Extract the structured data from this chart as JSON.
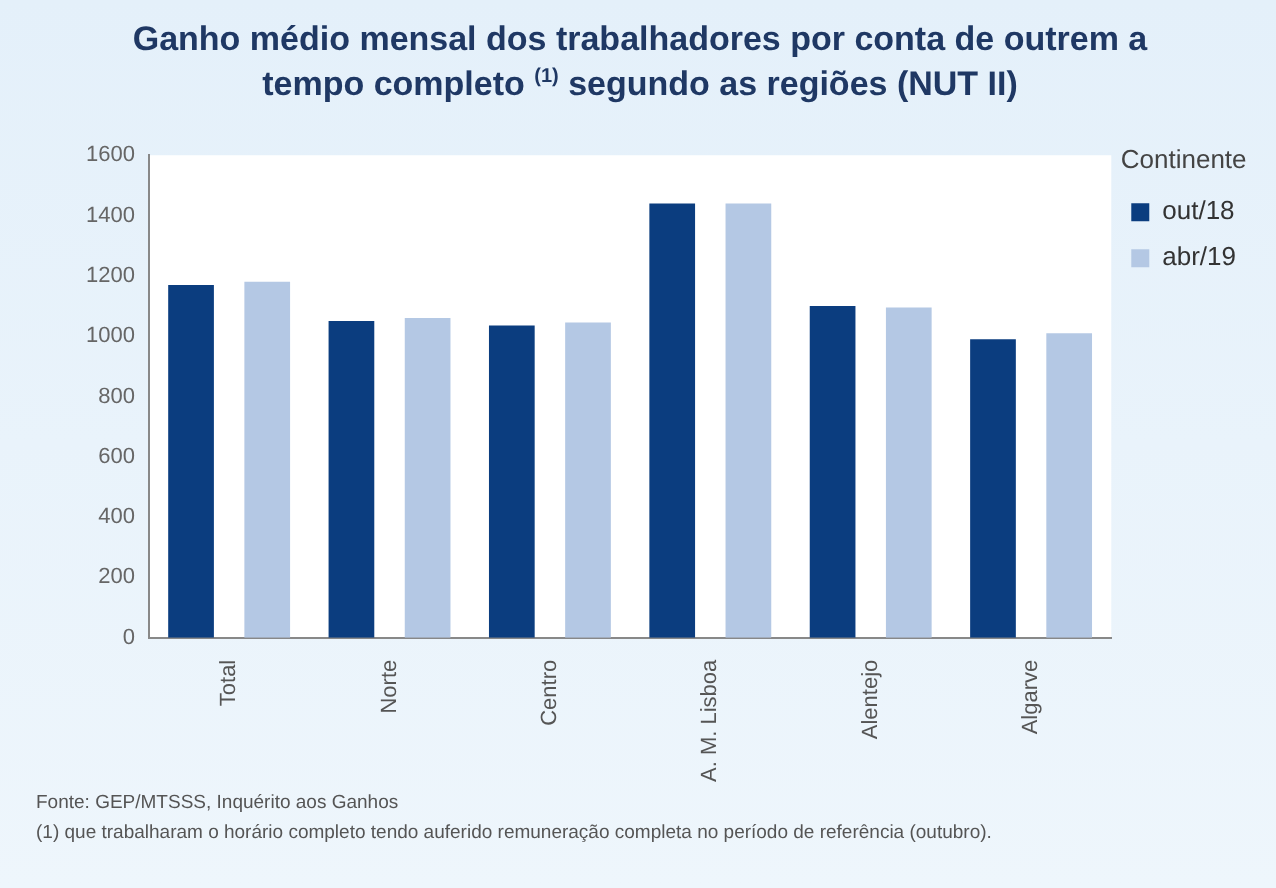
{
  "chart_data": {
    "type": "bar",
    "title": "Ganho médio mensal dos trabalhadores por conta de outrem a tempo completo $^{(1)}$ segundo as regiões (NUT II)",
    "categories": [
      "Total",
      "Norte",
      "Centro",
      "A. M. Lisboa",
      "Alentejo",
      "Algarve"
    ],
    "series": [
      {
        "name": "out/18",
        "color": "#0b3d7f",
        "values": [
          1170,
          1050,
          1035,
          1440,
          1100,
          990
        ]
      },
      {
        "name": "abr/19",
        "color": "#b4c8e4",
        "values": [
          1180,
          1060,
          1045,
          1440,
          1095,
          1010
        ]
      }
    ],
    "legend_title": "Continente",
    "legend": "top right",
    "ylim": [
      0,
      1600
    ],
    "yticks": [
      0,
      200,
      400,
      600,
      800,
      1000,
      1200,
      1400,
      1600
    ],
    "grid": false,
    "annotations": [
      "Fonte: GEP/MTSSS, Inquérito aos Ganhos",
      "(1) que trabalharam o horário completo tendo auferido remuneração completa no período de referência (outubro)."
    ]
  }
}
